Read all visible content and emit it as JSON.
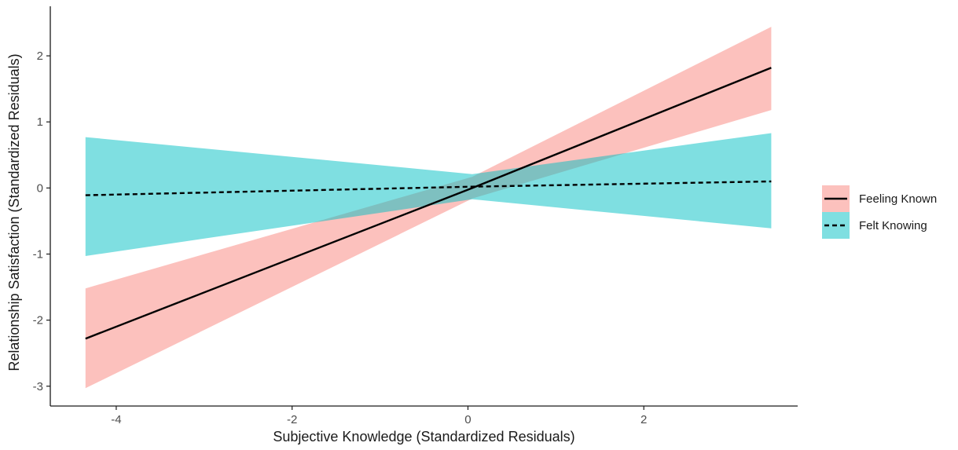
{
  "chart_data": {
    "type": "line",
    "title": "",
    "xlabel": "Subjective Knowledge (Standardized Residuals)",
    "ylabel": "Relationship Satisfaction (Standardized Residuals)",
    "xlim": [
      -4.75,
      3.75
    ],
    "ylim": [
      -3.3,
      2.75
    ],
    "xticks": [
      -4,
      -2,
      0,
      2
    ],
    "xtick_labels": [
      "-4",
      "-2",
      "0",
      "2"
    ],
    "yticks": [
      -3,
      -2,
      -1,
      0,
      1,
      2
    ],
    "ytick_labels": [
      "-3",
      "-2",
      "-1",
      "0",
      "1",
      "2"
    ],
    "grid": false,
    "legend_position": "right",
    "series": [
      {
        "name": "Feeling Known",
        "line_style": "solid",
        "line_color": "#000000",
        "ribbon_color": "#F8766D",
        "x": [
          -4.35,
          0.05,
          3.45
        ],
        "y": [
          -2.28,
          0.0,
          1.82
        ],
        "lower": [
          -3.03,
          -0.16,
          1.18
        ],
        "upper": [
          -1.52,
          0.17,
          2.44
        ]
      },
      {
        "name": "Felt Knowing",
        "line_style": "dashed",
        "line_color": "#000000",
        "ribbon_color": "#00BFC4",
        "x": [
          -4.35,
          0.05,
          3.45
        ],
        "y": [
          -0.11,
          0.02,
          0.1
        ],
        "lower": [
          -1.03,
          -0.17,
          -0.61
        ],
        "upper": [
          0.77,
          0.21,
          0.83
        ]
      }
    ]
  }
}
